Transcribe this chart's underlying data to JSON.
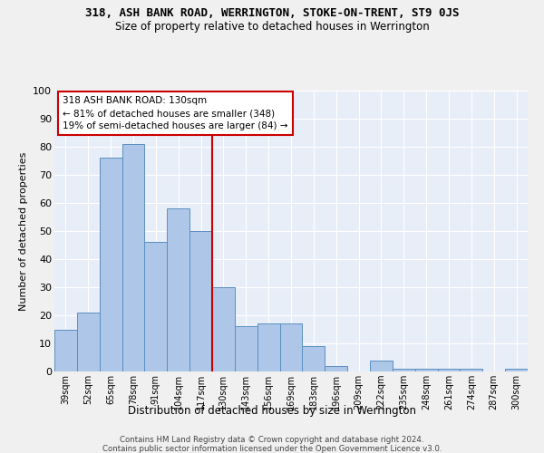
{
  "title1": "318, ASH BANK ROAD, WERRINGTON, STOKE-ON-TRENT, ST9 0JS",
  "title2": "Size of property relative to detached houses in Werrington",
  "xlabel": "Distribution of detached houses by size in Werrington",
  "ylabel": "Number of detached properties",
  "categories": [
    "39sqm",
    "52sqm",
    "65sqm",
    "78sqm",
    "91sqm",
    "104sqm",
    "117sqm",
    "130sqm",
    "143sqm",
    "156sqm",
    "169sqm",
    "183sqm",
    "196sqm",
    "209sqm",
    "222sqm",
    "235sqm",
    "248sqm",
    "261sqm",
    "274sqm",
    "287sqm",
    "300sqm"
  ],
  "values": [
    15,
    21,
    76,
    81,
    46,
    58,
    50,
    30,
    16,
    17,
    17,
    9,
    2,
    0,
    4,
    1,
    1,
    1,
    1,
    0,
    1
  ],
  "bar_color": "#aec6e8",
  "bar_edge_color": "#5a8fc0",
  "vline_color": "#cc0000",
  "annotation_text": "318 ASH BANK ROAD: 130sqm\n← 81% of detached houses are smaller (348)\n19% of semi-detached houses are larger (84) →",
  "annotation_box_color": "#cc0000",
  "background_color": "#e8eef8",
  "grid_color": "#ffffff",
  "ylim": [
    0,
    100
  ],
  "footer1": "Contains HM Land Registry data © Crown copyright and database right 2024.",
  "footer2": "Contains public sector information licensed under the Open Government Licence v3.0."
}
